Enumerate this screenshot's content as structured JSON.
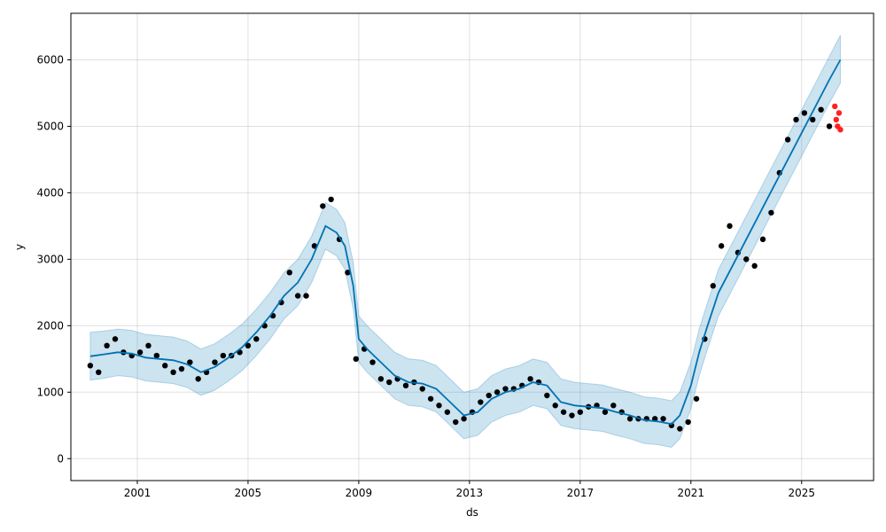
{
  "chart_data": {
    "type": "line",
    "title": "",
    "xlabel": "ds",
    "ylabel": "y",
    "xlim": [
      1998.6,
      2027.6
    ],
    "ylim": [
      -330,
      6700
    ],
    "x_ticks": [
      2001,
      2005,
      2009,
      2013,
      2017,
      2021,
      2025
    ],
    "x_tick_labels": [
      "2001",
      "2005",
      "2009",
      "2013",
      "2017",
      "2021",
      "2025"
    ],
    "y_ticks": [
      0,
      1000,
      2000,
      3000,
      4000,
      5000,
      6000
    ],
    "y_tick_labels": [
      "0",
      "1000",
      "2000",
      "3000",
      "4000",
      "5000",
      "6000"
    ],
    "grid": true,
    "colors": {
      "actual": "#000000",
      "forecast": "#0072B2",
      "band": "#0072B2",
      "holdout": "#ff2222"
    },
    "series": [
      {
        "role": "forecast",
        "x": [
          1999.3,
          1999.8,
          2000.3,
          2000.8,
          2001.3,
          2001.8,
          2002.3,
          2002.8,
          2003.3,
          2003.8,
          2004.3,
          2004.8,
          2005.3,
          2005.8,
          2006.3,
          2006.8,
          2007.3,
          2007.8,
          2008.2,
          2008.5,
          2008.8,
          2009.0,
          2009.3,
          2009.8,
          2010.3,
          2010.8,
          2011.3,
          2011.8,
          2012.3,
          2012.8,
          2013.3,
          2013.8,
          2014.3,
          2014.8,
          2015.3,
          2015.8,
          2016.3,
          2016.8,
          2017.3,
          2017.8,
          2018.3,
          2018.8,
          2019.3,
          2019.8,
          2020.3,
          2020.6,
          2021.0,
          2021.3,
          2021.6,
          2022.0,
          2022.5,
          2023.0,
          2023.5,
          2024.0,
          2024.5,
          2025.0,
          2025.5,
          2026.0,
          2026.4
        ],
        "values": [
          1540,
          1570,
          1600,
          1580,
          1520,
          1500,
          1480,
          1420,
          1300,
          1380,
          1520,
          1680,
          1900,
          2150,
          2450,
          2650,
          3000,
          3500,
          3400,
          3200,
          2600,
          1800,
          1650,
          1450,
          1250,
          1150,
          1130,
          1050,
          850,
          650,
          700,
          900,
          1000,
          1050,
          1150,
          1100,
          850,
          800,
          780,
          760,
          700,
          650,
          580,
          560,
          520,
          650,
          1100,
          1600,
          2000,
          2500,
          2900,
          3300,
          3700,
          4100,
          4500,
          4900,
          5300,
          5700,
          6000
        ]
      },
      {
        "role": "actual",
        "x": [
          1999.3,
          1999.6,
          1999.9,
          2000.2,
          2000.5,
          2000.8,
          2001.1,
          2001.4,
          2001.7,
          2002.0,
          2002.3,
          2002.6,
          2002.9,
          2003.2,
          2003.5,
          2003.8,
          2004.1,
          2004.4,
          2004.7,
          2005.0,
          2005.3,
          2005.6,
          2005.9,
          2006.2,
          2006.5,
          2006.8,
          2007.1,
          2007.4,
          2007.7,
          2008.0,
          2008.3,
          2008.6,
          2008.9,
          2009.2,
          2009.5,
          2009.8,
          2010.1,
          2010.4,
          2010.7,
          2011.0,
          2011.3,
          2011.6,
          2011.9,
          2012.2,
          2012.5,
          2012.8,
          2013.1,
          2013.4,
          2013.7,
          2014.0,
          2014.3,
          2014.6,
          2014.9,
          2015.2,
          2015.5,
          2015.8,
          2016.1,
          2016.4,
          2016.7,
          2017.0,
          2017.3,
          2017.6,
          2017.9,
          2018.2,
          2018.5,
          2018.8,
          2019.1,
          2019.4,
          2019.7,
          2020.0,
          2020.3,
          2020.6,
          2020.9,
          2021.2,
          2021.5,
          2021.8,
          2022.1,
          2022.4,
          2022.7,
          2023.0,
          2023.3,
          2023.6,
          2023.9,
          2024.2,
          2024.5,
          2024.8,
          2025.1,
          2025.4,
          2025.7,
          2026.0
        ],
        "values": [
          1400,
          1300,
          1700,
          1800,
          1600,
          1550,
          1600,
          1700,
          1550,
          1400,
          1300,
          1350,
          1450,
          1200,
          1300,
          1450,
          1550,
          1550,
          1600,
          1700,
          1800,
          2000,
          2150,
          2350,
          2800,
          2450,
          2450,
          3200,
          3800,
          3900,
          3300,
          2800,
          1500,
          1650,
          1450,
          1200,
          1150,
          1200,
          1100,
          1150,
          1050,
          900,
          800,
          700,
          550,
          600,
          700,
          850,
          950,
          1000,
          1050,
          1050,
          1100,
          1200,
          1150,
          950,
          800,
          700,
          650,
          700,
          780,
          800,
          700,
          800,
          700,
          600,
          600,
          600,
          600,
          600,
          500,
          450,
          550,
          900,
          1800,
          2600,
          3200,
          3500,
          3100,
          3000,
          2900,
          3300,
          3700,
          4300,
          4800,
          5100,
          5200,
          5100,
          5250,
          5000
        ]
      },
      {
        "role": "holdout",
        "x": [
          2026.2,
          2026.25,
          2026.3,
          2026.35,
          2026.4
        ],
        "values": [
          5300,
          5100,
          5000,
          5200,
          4950
        ]
      }
    ],
    "band": {
      "x": [
        1999.3,
        1999.8,
        2000.3,
        2000.8,
        2001.3,
        2001.8,
        2002.3,
        2002.8,
        2003.3,
        2003.8,
        2004.3,
        2004.8,
        2005.3,
        2005.8,
        2006.3,
        2006.8,
        2007.3,
        2007.8,
        2008.2,
        2008.5,
        2008.8,
        2009.0,
        2009.3,
        2009.8,
        2010.3,
        2010.8,
        2011.3,
        2011.8,
        2012.3,
        2012.8,
        2013.3,
        2013.8,
        2014.3,
        2014.8,
        2015.3,
        2015.8,
        2016.3,
        2016.8,
        2017.3,
        2017.8,
        2018.3,
        2018.8,
        2019.3,
        2019.8,
        2020.3,
        2020.6,
        2021.0,
        2021.3,
        2021.6,
        2022.0,
        2022.5,
        2023.0,
        2023.5,
        2024.0,
        2024.5,
        2025.0,
        2025.5,
        2026.0,
        2026.4
      ],
      "upper": [
        1900,
        1920,
        1950,
        1930,
        1870,
        1850,
        1830,
        1770,
        1650,
        1730,
        1870,
        2030,
        2250,
        2500,
        2800,
        3000,
        3350,
        3850,
        3750,
        3550,
        2950,
        2150,
        2000,
        1800,
        1600,
        1500,
        1480,
        1400,
        1200,
        1000,
        1050,
        1250,
        1350,
        1400,
        1500,
        1450,
        1200,
        1150,
        1130,
        1110,
        1050,
        1000,
        930,
        910,
        870,
        1000,
        1450,
        1950,
        2350,
        2850,
        3250,
        3650,
        4050,
        4450,
        4850,
        5250,
        5650,
        6050,
        6370
      ],
      "lower": [
        1180,
        1210,
        1250,
        1230,
        1170,
        1150,
        1130,
        1070,
        950,
        1030,
        1170,
        1330,
        1550,
        1800,
        2100,
        2300,
        2650,
        3150,
        3050,
        2850,
        2250,
        1450,
        1300,
        1100,
        900,
        800,
        780,
        700,
        500,
        300,
        350,
        550,
        650,
        700,
        800,
        750,
        500,
        450,
        430,
        410,
        350,
        300,
        230,
        210,
        170,
        300,
        750,
        1250,
        1650,
        2150,
        2550,
        2950,
        3350,
        3750,
        4150,
        4550,
        4950,
        5350,
        5650
      ]
    }
  }
}
